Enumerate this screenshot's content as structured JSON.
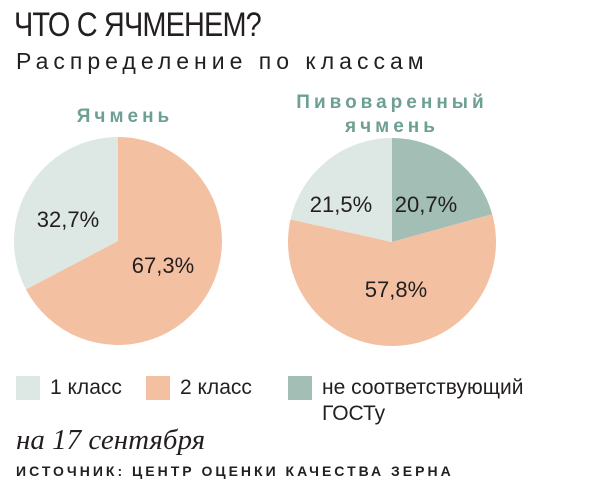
{
  "header": {
    "title": "ЧТО С ЯЧМЕНЕМ?",
    "subtitle": "Распределение по классам"
  },
  "chart_data": [
    {
      "type": "pie",
      "title": "Ячмень",
      "unit": "%",
      "labels": [
        "1 класс",
        "2 класс"
      ],
      "values": [
        32.7,
        67.3
      ],
      "value_labels": [
        "32,7%",
        "67,3%"
      ],
      "colors": [
        "#dde7e4",
        "#f3c1a1"
      ]
    },
    {
      "type": "pie",
      "title": "Пивоваренный ячмень",
      "unit": "%",
      "labels": [
        "не соответствующий ГОСТу",
        "2 класс",
        "1 класс"
      ],
      "values": [
        20.7,
        57.8,
        21.5
      ],
      "value_labels": [
        "20,7%",
        "57,8%",
        "21,5%"
      ],
      "colors": [
        "#a3bfb5",
        "#f3c1a1",
        "#dde7e4"
      ]
    }
  ],
  "legend": [
    {
      "label": "1 класс",
      "color": "#dde7e4"
    },
    {
      "label": "2 класс",
      "color": "#f3c1a1"
    },
    {
      "label": "не соответствующий ГОСТу",
      "color": "#a3bfb5"
    }
  ],
  "footer": {
    "date": "на 17 сентября",
    "source": "ИСТОЧНИК: ЦЕНТР ОЦЕНКИ КАЧЕСТВА ЗЕРНА"
  }
}
